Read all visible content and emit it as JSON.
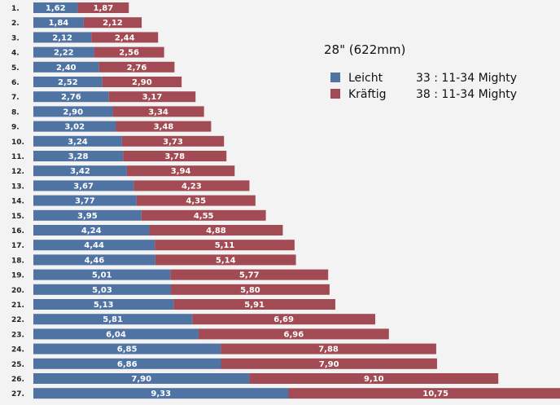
{
  "chart_data": {
    "type": "bar",
    "title": "28\" (622mm)",
    "legend_position": "top-right",
    "grid": false,
    "categories": [
      "1.",
      "2.",
      "3.",
      "4.",
      "5.",
      "6.",
      "7.",
      "8.",
      "9.",
      "10.",
      "11.",
      "12.",
      "13.",
      "14.",
      "15.",
      "16.",
      "17.",
      "18.",
      "19.",
      "20.",
      "21.",
      "22.",
      "23.",
      "24.",
      "25.",
      "26.",
      "27."
    ],
    "series": [
      {
        "name": "Leicht",
        "description": "33 : 11-34  Mighty",
        "color": "#4f73a3",
        "values": [
          1.62,
          1.84,
          2.12,
          2.22,
          2.4,
          2.52,
          2.76,
          2.9,
          3.02,
          3.24,
          3.28,
          3.42,
          3.67,
          3.77,
          3.95,
          4.24,
          4.44,
          4.46,
          5.01,
          5.03,
          5.13,
          5.81,
          6.04,
          6.85,
          6.86,
          7.9,
          9.33
        ],
        "labels": [
          "1,62",
          "1,84",
          "2,12",
          "2,22",
          "2,40",
          "2,52",
          "2,76",
          "2,90",
          "3,02",
          "3,24",
          "3,28",
          "3,42",
          "3,67",
          "3,77",
          "3,95",
          "4,24",
          "4,44",
          "4,46",
          "5,01",
          "5,03",
          "5,13",
          "5,81",
          "6,04",
          "6,85",
          "6,86",
          "7,90",
          "9,33"
        ]
      },
      {
        "name": "Kräftig",
        "description": "38 : 11-34  Mighty",
        "color": "#a24b54",
        "values": [
          1.87,
          2.12,
          2.44,
          2.56,
          2.76,
          2.9,
          3.17,
          3.34,
          3.48,
          3.73,
          3.78,
          3.94,
          4.23,
          4.35,
          4.55,
          4.88,
          5.11,
          5.14,
          5.77,
          5.8,
          5.91,
          6.69,
          6.96,
          7.88,
          7.9,
          9.1,
          10.75
        ],
        "labels": [
          "1,87",
          "2,12",
          "2,44",
          "2,56",
          "2,76",
          "2,90",
          "3,17",
          "3,34",
          "3,48",
          "3,73",
          "3,78",
          "3,94",
          "4,23",
          "4,35",
          "4,55",
          "4,88",
          "5,11",
          "5,14",
          "5,77",
          "5,80",
          "5,91",
          "6,69",
          "6,96",
          "7,88",
          "7,90",
          "9,10",
          "10,75"
        ]
      }
    ]
  }
}
